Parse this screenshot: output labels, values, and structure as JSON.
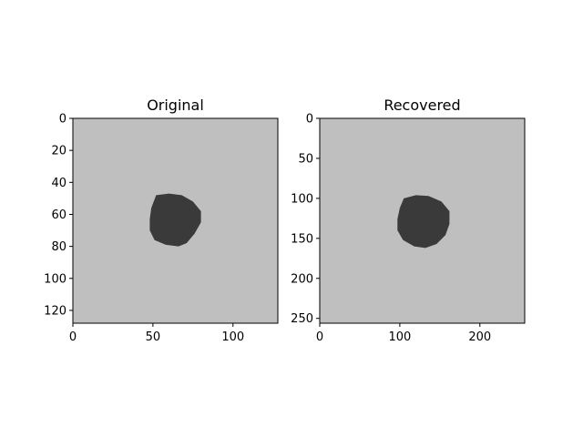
{
  "chart_data": [
    {
      "type": "heatmap",
      "title": "Original",
      "xlabel": "",
      "ylabel": "",
      "xlim": [
        0,
        128
      ],
      "ylim": [
        128,
        0
      ],
      "xticks": [
        0,
        50,
        100
      ],
      "yticks": [
        0,
        20,
        40,
        60,
        80,
        100,
        120
      ],
      "image": {
        "background_color": "#bfbfbf",
        "blob_color": "#3a3a3a",
        "blob_outline": [
          [
            52,
            48
          ],
          [
            60,
            47
          ],
          [
            68,
            48
          ],
          [
            75,
            52
          ],
          [
            80,
            58
          ],
          [
            80,
            65
          ],
          [
            76,
            72
          ],
          [
            71,
            78
          ],
          [
            66,
            80
          ],
          [
            58,
            79
          ],
          [
            51,
            76
          ],
          [
            48,
            70
          ],
          [
            48,
            63
          ],
          [
            49,
            56
          ]
        ]
      }
    },
    {
      "type": "heatmap",
      "title": "Recovered",
      "xlabel": "",
      "ylabel": "",
      "xlim": [
        0,
        256
      ],
      "ylim": [
        256,
        0
      ],
      "xticks": [
        0,
        100,
        200
      ],
      "yticks": [
        0,
        50,
        100,
        150,
        200,
        250
      ],
      "image": {
        "background_color": "#bfbfbf",
        "blob_color": "#3a3a3a",
        "blob_outline": [
          [
            105,
            100
          ],
          [
            120,
            96
          ],
          [
            136,
            97
          ],
          [
            152,
            104
          ],
          [
            162,
            116
          ],
          [
            162,
            132
          ],
          [
            157,
            146
          ],
          [
            146,
            157
          ],
          [
            132,
            162
          ],
          [
            118,
            160
          ],
          [
            104,
            152
          ],
          [
            97,
            140
          ],
          [
            97,
            126
          ],
          [
            100,
            112
          ]
        ]
      }
    }
  ]
}
